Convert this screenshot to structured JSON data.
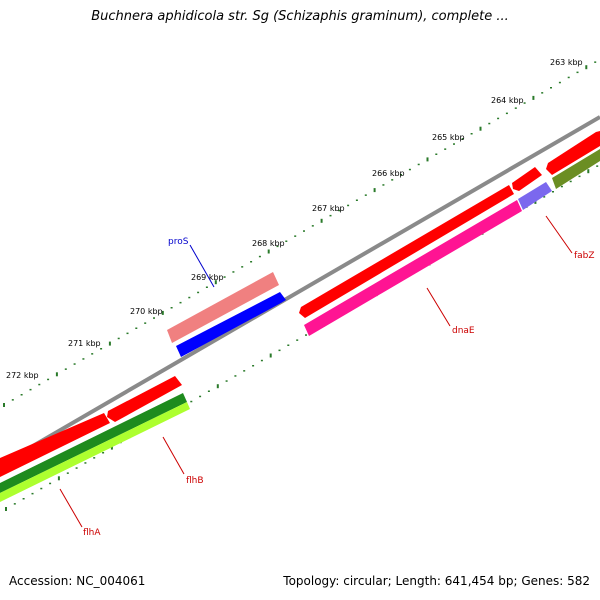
{
  "title": "Buchnera aphidicola str. Sg (Schizaphis graminum), complete ...",
  "footer": {
    "accession": "Accession: NC_004061",
    "summary": "Topology: circular; Length: 641,454 bp; Genes: 582"
  },
  "ticks": [
    "263 kbp",
    "264 kbp",
    "265 kbp",
    "266 kbp",
    "267 kbp",
    "268 kbp",
    "269 kbp",
    "270 kbp",
    "271 kbp",
    "272 kbp"
  ],
  "genes": {
    "fabZ": "fabZ",
    "dnaE": "dnaE",
    "proS": "proS",
    "flhB": "flhB",
    "flhA": "flhA"
  },
  "colors": {
    "tick": "#2a7a2a",
    "backbone": "#8a8a8a",
    "red": "#ff0000",
    "salmon": "#f08080",
    "blue": "#0000ff",
    "magenta": "#ff1493",
    "purple": "#7b68ee",
    "olive": "#6b8e23",
    "green": "#1e8b1e",
    "yellowgreen": "#adff2f",
    "labelRed": "#cc0000",
    "labelBlue": "#0000cc"
  }
}
